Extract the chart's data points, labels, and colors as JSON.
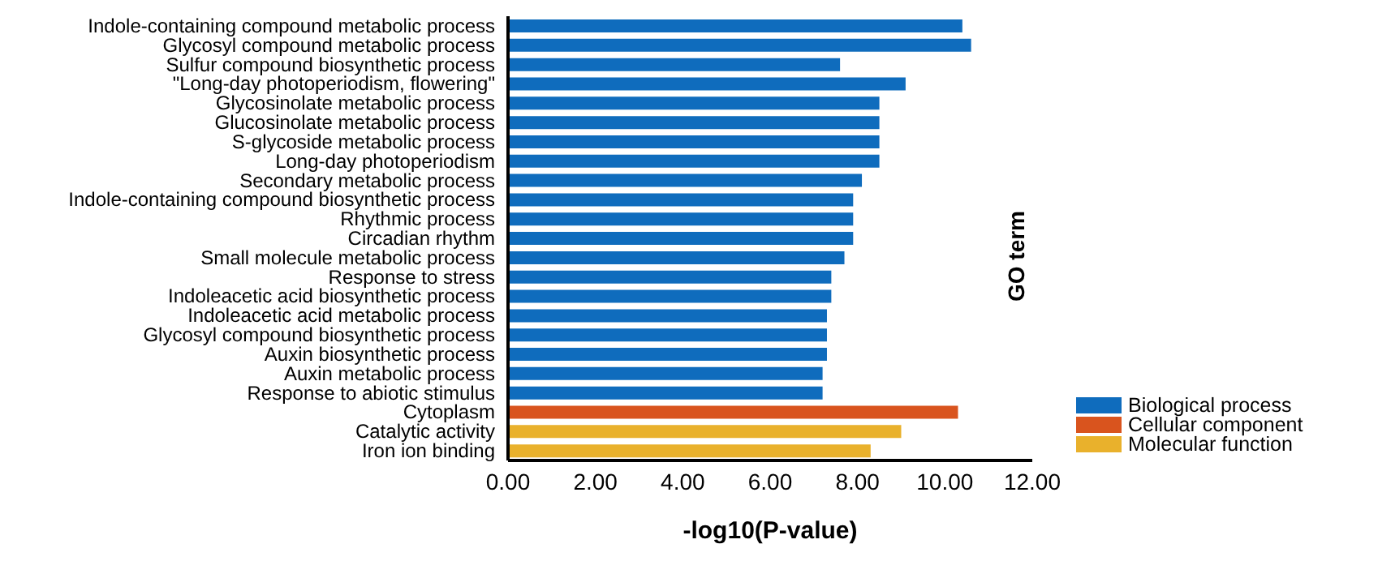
{
  "chart_data": {
    "type": "bar",
    "orientation": "horizontal",
    "stacked": true,
    "xlabel": "-log10(P-value)",
    "ylabel": "GO term",
    "categories": [
      "Indole-containing compound metabolic process",
      "Glycosyl compound metabolic process",
      "Sulfur compound biosynthetic process",
      "\"Long-day photoperiodism, flowering\"",
      "Glycosinolate metabolic process",
      "Glucosinolate metabolic process",
      "S-glycoside metabolic process",
      "Long-day photoperiodism",
      "Secondary metabolic process",
      "Indole-containing compound biosynthetic process",
      "Rhythmic process",
      "Circadian rhythm",
      "Small molecule metabolic process",
      "Response to stress",
      "Indoleacetic acid biosynthetic process",
      "Indoleacetic acid metabolic process",
      "Glycosyl compound biosynthetic process",
      "Auxin biosynthetic process",
      "Auxin metabolic process",
      "Response to abiotic stimulus",
      "Cytoplasm",
      "Catalytic activity",
      "Iron ion binding"
    ],
    "series": [
      {
        "name": "Biological process",
        "color": "#0f6cbd",
        "values": [
          10.4,
          10.6,
          7.6,
          9.1,
          8.5,
          8.5,
          8.5,
          8.5,
          8.1,
          7.9,
          7.9,
          7.9,
          7.7,
          7.4,
          7.4,
          7.3,
          7.3,
          7.3,
          7.2,
          7.2,
          null,
          null,
          null
        ]
      },
      {
        "name": "Cellular component",
        "color": "#d9541e",
        "values": [
          null,
          null,
          null,
          null,
          null,
          null,
          null,
          null,
          null,
          null,
          null,
          null,
          null,
          null,
          null,
          null,
          null,
          null,
          null,
          null,
          10.3,
          null,
          null
        ]
      },
      {
        "name": "Molecular function",
        "color": "#e9b12c",
        "values": [
          null,
          null,
          null,
          null,
          null,
          null,
          null,
          null,
          null,
          null,
          null,
          null,
          null,
          null,
          null,
          null,
          null,
          null,
          null,
          null,
          null,
          9.0,
          8.3
        ]
      }
    ],
    "xlim": [
      0,
      12
    ],
    "xticks": [
      {
        "value": 0,
        "label": "0.00"
      },
      {
        "value": 2,
        "label": "2.00"
      },
      {
        "value": 4,
        "label": "4.00"
      },
      {
        "value": 6,
        "label": "6.00"
      },
      {
        "value": 8,
        "label": "8.00"
      },
      {
        "value": 10,
        "label": "10.00"
      },
      {
        "value": 12,
        "label": "12.00"
      }
    ],
    "grid": false,
    "legend": "right"
  }
}
